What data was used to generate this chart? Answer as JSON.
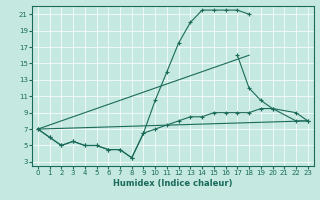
{
  "xlabel": "Humidex (Indice chaleur)",
  "bg_color": "#c5e8e0",
  "grid_color": "#ffffff",
  "line_color": "#1a6b5a",
  "xlim": [
    -0.5,
    23.5
  ],
  "ylim": [
    2.5,
    22
  ],
  "yticks": [
    3,
    5,
    7,
    9,
    11,
    13,
    15,
    17,
    19,
    21
  ],
  "xticks": [
    0,
    1,
    2,
    3,
    4,
    5,
    6,
    7,
    8,
    9,
    10,
    11,
    12,
    13,
    14,
    15,
    16,
    17,
    18,
    19,
    20,
    21,
    22,
    23
  ],
  "series": [
    {
      "x": [
        0,
        1,
        2,
        3,
        4,
        5,
        6,
        7,
        8,
        9,
        10,
        11,
        12,
        13,
        14,
        15,
        16,
        17,
        18
      ],
      "y": [
        7,
        6,
        5,
        5.5,
        5,
        5,
        4.5,
        4.5,
        3.5,
        6.5,
        10.5,
        14,
        17.5,
        20,
        21.5,
        21.5,
        21.5,
        21.5,
        21
      ],
      "markers": true
    },
    {
      "x": [
        17,
        18,
        19,
        20,
        22,
        23
      ],
      "y": [
        16,
        12,
        10.5,
        9.5,
        9,
        8
      ],
      "markers": true
    },
    {
      "x": [
        0,
        23
      ],
      "y": [
        7,
        8
      ],
      "markers": false
    },
    {
      "x": [
        0,
        18
      ],
      "y": [
        7,
        16
      ],
      "markers": false
    },
    {
      "x": [
        0,
        1,
        2,
        3,
        4,
        5,
        6,
        7,
        8,
        9,
        10,
        11,
        12,
        13,
        14,
        15,
        16,
        17,
        18,
        19,
        20,
        22,
        23
      ],
      "y": [
        7,
        6,
        5,
        5.5,
        5,
        5,
        4.5,
        4.5,
        3.5,
        6.5,
        7,
        7.5,
        8,
        8.5,
        8.5,
        9,
        9,
        9,
        9,
        9.5,
        9.5,
        8,
        8
      ],
      "markers": true
    }
  ]
}
